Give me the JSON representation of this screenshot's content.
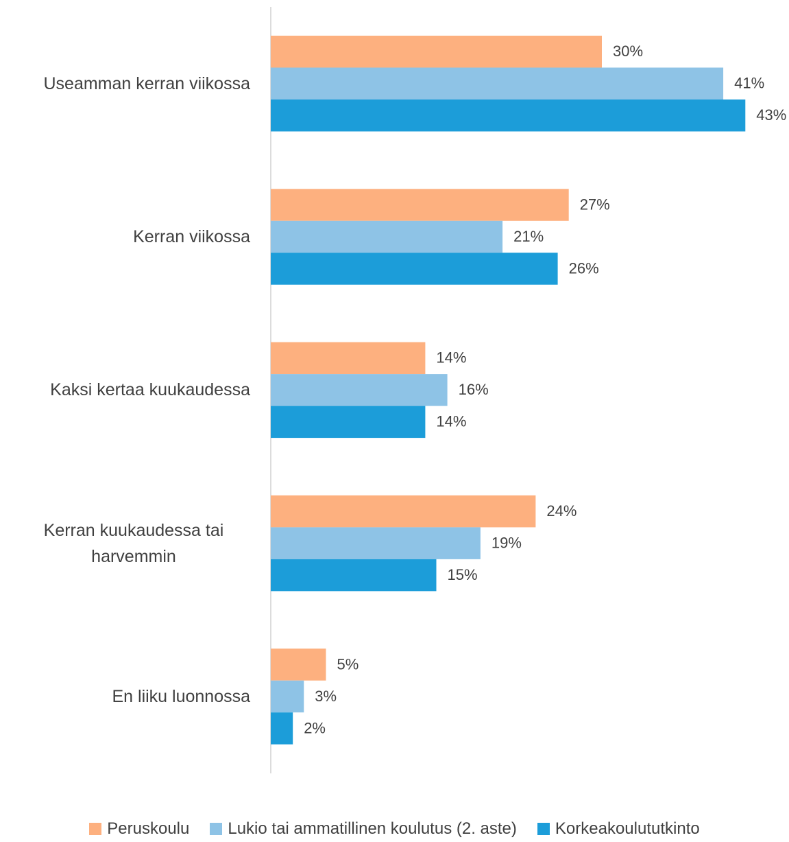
{
  "chart_data": {
    "type": "bar",
    "orientation": "horizontal",
    "categories": [
      "Useamman kerran viikossa",
      "Kerran viikossa",
      "Kaksi kertaa kuukaudessa",
      "Kerran kuukaudessa tai harvemmin",
      "En liiku luonnossa"
    ],
    "series": [
      {
        "name": "Peruskoulu",
        "color": "#FDB07F",
        "values": [
          30,
          27,
          14,
          24,
          5
        ],
        "value_labels": [
          "30%",
          "27%",
          "14%",
          "24%",
          "5%"
        ]
      },
      {
        "name": "Lukio tai ammatillinen koulutus (2. aste)",
        "color": "#8EC3E6",
        "values": [
          41,
          21,
          16,
          19,
          3
        ],
        "value_labels": [
          "41%",
          "21%",
          "16%",
          "19%",
          "3%"
        ]
      },
      {
        "name": "Korkeakoulututkinto",
        "color": "#1C9DD9",
        "values": [
          43,
          26,
          14,
          15,
          2
        ],
        "value_labels": [
          "43%",
          "26%",
          "14%",
          "15%",
          "2%"
        ]
      }
    ],
    "legend": "bottom"
  }
}
